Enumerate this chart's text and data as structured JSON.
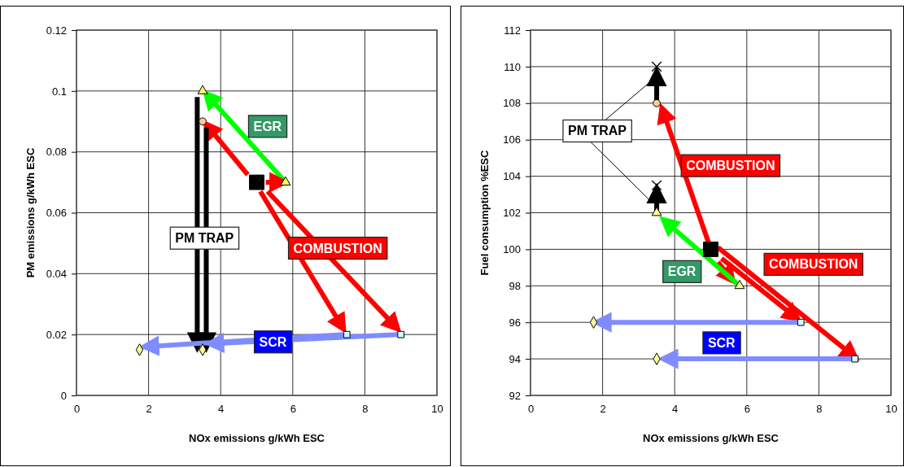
{
  "chart_data": [
    {
      "type": "scatter",
      "xlabel": "NOx emissions g/kWh ESC",
      "ylabel": "PM emissions g/kWh ESC",
      "xlim": [
        0,
        10
      ],
      "xticks": [
        0,
        2,
        4,
        6,
        8,
        10
      ],
      "ylim": [
        0,
        0.12
      ],
      "yticks": [
        0,
        0.02,
        0.04,
        0.06,
        0.08,
        0.1,
        0.12
      ],
      "grid": true,
      "annotations": [
        "EGR",
        "PM TRAP",
        "COMBUSTION",
        "SCR"
      ],
      "series": [
        {
          "type": "line",
          "color": "#00ff00",
          "x": [
            5.8,
            3.6
          ],
          "values": [
            0.07,
            0.099
          ]
        },
        {
          "type": "line",
          "color": "#ff0000",
          "x": [
            4.75,
            3.6
          ],
          "values": [
            0.0725,
            0.089
          ]
        },
        {
          "type": "line",
          "color": "#ff0000",
          "x": [
            5.25,
            5.75
          ],
          "values": [
            0.07,
            0.07
          ]
        },
        {
          "type": "line",
          "color": "#ff0000",
          "x": [
            5.1,
            7.4
          ],
          "values": [
            0.067,
            0.022
          ]
        },
        {
          "type": "line",
          "color": "#ff0000",
          "x": [
            5.3,
            8.9
          ],
          "values": [
            0.067,
            0.022
          ]
        },
        {
          "type": "line",
          "color": "#000000",
          "x": [
            3.35,
            3.35
          ],
          "values": [
            0.098,
            0.016
          ]
        },
        {
          "type": "line",
          "color": "#000000",
          "x": [
            3.6,
            3.6
          ],
          "values": [
            0.088,
            0.016
          ]
        },
        {
          "type": "line",
          "color": "#7f8cff",
          "x": [
            7.4,
            1.9
          ],
          "values": [
            0.02,
            0.016
          ]
        },
        {
          "type": "line",
          "color": "#7f8cff",
          "x": [
            8.9,
            3.7
          ],
          "values": [
            0.02,
            0.017
          ]
        },
        {
          "marker": "square",
          "color": "#000000",
          "x": [
            5
          ],
          "values": [
            0.07
          ]
        },
        {
          "marker": "triangle",
          "color": "#ffff66",
          "x": [
            5.8,
            3.5
          ],
          "values": [
            0.07,
            0.1
          ]
        },
        {
          "marker": "circle",
          "color": "#ffcc99",
          "x": [
            3.5
          ],
          "values": [
            0.09
          ]
        },
        {
          "marker": "square",
          "color": "#ccffff",
          "x": [
            7.5,
            9
          ],
          "values": [
            0.02,
            0.02
          ]
        },
        {
          "marker": "diamond",
          "color": "#ffff99",
          "x": [
            1.75,
            3.5
          ],
          "values": [
            0.015,
            0.015
          ]
        }
      ]
    },
    {
      "type": "scatter",
      "xlabel": "NOx emissions g/kWh ESC",
      "ylabel": "Fuel consumption %ESC",
      "xlim": [
        0,
        10
      ],
      "xticks": [
        0,
        2,
        4,
        6,
        8,
        10
      ],
      "ylim": [
        92,
        112
      ],
      "yticks": [
        92,
        94,
        96,
        98,
        100,
        102,
        104,
        106,
        108,
        110,
        112
      ],
      "grid": true,
      "annotations": [
        {
          "text": "PM TRAP",
          "x": 3.5,
          "y": 109.3
        },
        "COMBUSTION",
        "COMBUSTION",
        "EGR",
        "SCR"
      ],
      "series": [
        {
          "type": "line",
          "color": "#ff0000",
          "x": [
            4.95,
            3.65
          ],
          "values": [
            100.3,
            107.7
          ]
        },
        {
          "type": "line",
          "color": "#ff0000",
          "x": [
            5.3,
            7.4
          ],
          "values": [
            99.5,
            96.2
          ]
        },
        {
          "type": "line",
          "color": "#ff0000",
          "x": [
            5.2,
            9
          ],
          "values": [
            100.1,
            94.1
          ]
        },
        {
          "type": "line",
          "color": "#ff0000",
          "x": [
            5.2,
            5.6
          ],
          "values": [
            99.3,
            98.3
          ]
        },
        {
          "type": "line",
          "color": "#00ff00",
          "x": [
            5.8,
            3.7
          ],
          "values": [
            98,
            101.6
          ]
        },
        {
          "type": "line",
          "color": "#000000",
          "x": [
            3.5,
            3.5
          ],
          "values": [
            108,
            109.7
          ]
        },
        {
          "type": "line",
          "color": "#000000",
          "x": [
            3.5,
            3.5
          ],
          "values": [
            102,
            103.3
          ]
        },
        {
          "type": "line",
          "color": "#7f8cff",
          "x": [
            7.5,
            1.85
          ],
          "values": [
            96,
            96
          ]
        },
        {
          "type": "line",
          "color": "#7f8cff",
          "x": [
            8.95,
            3.7
          ],
          "values": [
            94,
            94
          ]
        },
        {
          "marker": "square",
          "color": "#000000",
          "x": [
            5
          ],
          "values": [
            100
          ]
        },
        {
          "marker": "triangle",
          "color": "#ffff99",
          "x": [
            5.8,
            3.5
          ],
          "values": [
            98,
            102
          ]
        },
        {
          "marker": "circle",
          "color": "#ffcc99",
          "x": [
            3.5
          ],
          "values": [
            108
          ]
        },
        {
          "marker": "cross",
          "color": "#000000",
          "x": [
            3.5,
            3.5
          ],
          "values": [
            110,
            103.5
          ]
        },
        {
          "marker": "square",
          "color": "#ccffff",
          "x": [
            7.5,
            9
          ],
          "values": [
            96,
            94
          ]
        },
        {
          "marker": "diamond",
          "color": "#ffff99",
          "x": [
            1.75,
            3.5
          ],
          "values": [
            96,
            94
          ]
        }
      ]
    }
  ]
}
